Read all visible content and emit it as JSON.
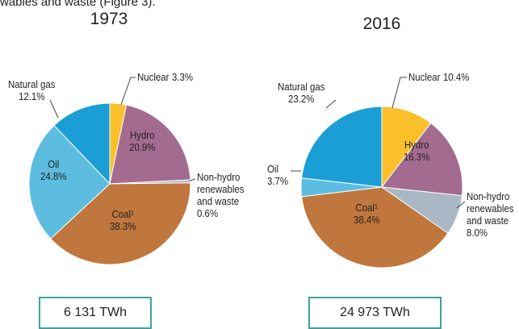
{
  "header_text": "wables and waste (Figure 3).",
  "chart_data": [
    {
      "type": "pie",
      "title": "1973",
      "total": "6 131 TWh",
      "categories": [
        "Nuclear",
        "Hydro",
        "Non-hydro renewables and waste",
        "Coal¹",
        "Oil",
        "Natural gas"
      ],
      "values": [
        3.3,
        20.9,
        0.6,
        38.3,
        24.8,
        12.1
      ],
      "value_labels": [
        "3.3%",
        "20.9%",
        "0.6%",
        "38.3%",
        "24.8%",
        "12.1%"
      ],
      "colors": [
        "#fbbf2a",
        "#a36b90",
        "#aab8c6",
        "#c0773d",
        "#5dbde0",
        "#1b9ed5"
      ]
    },
    {
      "type": "pie",
      "title": "2016",
      "total": "24 973 TWh",
      "categories": [
        "Nuclear",
        "Hydro",
        "Non-hydro renewables and waste",
        "Coal¹",
        "Oil",
        "Natural gas"
      ],
      "values": [
        10.4,
        16.3,
        8.0,
        38.4,
        3.7,
        23.2
      ],
      "value_labels": [
        "10.4%",
        "16.3%",
        "8.0%",
        "38.4%",
        "3.7%",
        "23.2%"
      ],
      "colors": [
        "#fbbf2a",
        "#a36b90",
        "#aab8c6",
        "#c0773d",
        "#5dbde0",
        "#1b9ed5"
      ]
    }
  ]
}
